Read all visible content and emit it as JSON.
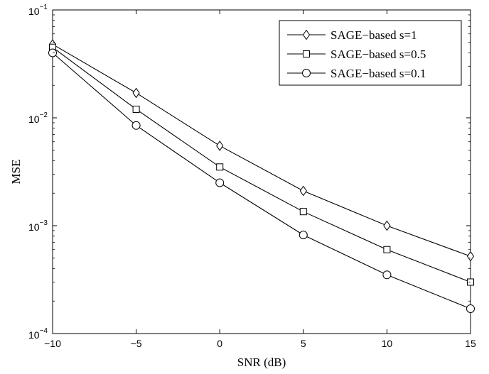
{
  "chart_data": {
    "type": "line",
    "title": "",
    "xlabel": "SNR (dB)",
    "ylabel": "MSE",
    "x": [
      -10,
      -5,
      0,
      5,
      10,
      15
    ],
    "xlim": [
      -10,
      15
    ],
    "ylim": [
      0.0001,
      0.1
    ],
    "yscale": "log",
    "grid": false,
    "legend_position": "top-right",
    "x_ticks": [
      "−10",
      "−5",
      "0",
      "5",
      "10",
      "15"
    ],
    "y_ticks": [
      {
        "base": "10",
        "exp": "−1",
        "value": 0.1
      },
      {
        "base": "10",
        "exp": "−2",
        "value": 0.01
      },
      {
        "base": "10",
        "exp": "−3",
        "value": 0.001
      },
      {
        "base": "10",
        "exp": "−4",
        "value": 0.0001
      }
    ],
    "series": [
      {
        "name": "SAGE−based s=1",
        "marker": "diamond",
        "values": [
          0.048,
          0.017,
          0.0055,
          0.0021,
          0.001,
          0.00052
        ]
      },
      {
        "name": "SAGE−based s=0.5",
        "marker": "square",
        "values": [
          0.045,
          0.012,
          0.0035,
          0.00135,
          0.0006,
          0.0003
        ]
      },
      {
        "name": "SAGE−based s=0.1",
        "marker": "circle",
        "values": [
          0.04,
          0.0085,
          0.0025,
          0.00082,
          0.00035,
          0.00017
        ]
      }
    ],
    "colors": {
      "line": "#000000",
      "background": "#ffffff"
    }
  }
}
